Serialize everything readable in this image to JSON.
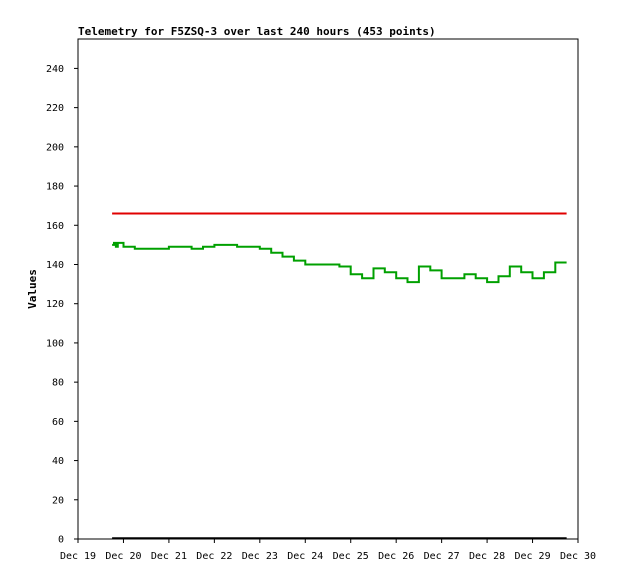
{
  "chart_data": {
    "type": "line",
    "title": "Telemetry for F5ZSQ-3 over last 240 hours (453 points)",
    "xlabel": "",
    "ylabel": "Values",
    "x_tick_labels": [
      "Dec 19",
      "Dec 20",
      "Dec 21",
      "Dec 22",
      "Dec 23",
      "Dec 24",
      "Dec 25",
      "Dec 26",
      "Dec 27",
      "Dec 28",
      "Dec 29",
      "Dec 30"
    ],
    "y_ticks": [
      0,
      20,
      40,
      60,
      80,
      100,
      120,
      140,
      160,
      180,
      200,
      220,
      240
    ],
    "ylim": [
      0,
      255
    ],
    "xlim": [
      "Dec 19",
      "Dec 30"
    ],
    "grid": false,
    "series": [
      {
        "color": "#e00000",
        "points": [
          [
            "Dec 19 18:00",
            166
          ],
          [
            "Dec 29 18:00",
            166
          ]
        ]
      },
      {
        "color": "#00a000",
        "points": [
          [
            "Dec 19 18:00",
            150
          ],
          [
            "Dec 19 19:00",
            151
          ],
          [
            "Dec 19 20:00",
            149
          ],
          [
            "Dec 19 21:00",
            151
          ],
          [
            "Dec 20 00:00",
            149
          ],
          [
            "Dec 20 06:00",
            148
          ],
          [
            "Dec 20 18:00",
            148
          ],
          [
            "Dec 21 00:00",
            149
          ],
          [
            "Dec 21 12:00",
            148
          ],
          [
            "Dec 21 18:00",
            149
          ],
          [
            "Dec 22 00:00",
            150
          ],
          [
            "Dec 22 06:00",
            150
          ],
          [
            "Dec 22 12:00",
            149
          ],
          [
            "Dec 22 18:00",
            149
          ],
          [
            "Dec 23 00:00",
            148
          ],
          [
            "Dec 23 06:00",
            146
          ],
          [
            "Dec 23 12:00",
            144
          ],
          [
            "Dec 23 18:00",
            142
          ],
          [
            "Dec 24 00:00",
            140
          ],
          [
            "Dec 24 12:00",
            140
          ],
          [
            "Dec 24 18:00",
            139
          ],
          [
            "Dec 25 00:00",
            135
          ],
          [
            "Dec 25 06:00",
            133
          ],
          [
            "Dec 25 12:00",
            138
          ],
          [
            "Dec 25 18:00",
            136
          ],
          [
            "Dec 26 00:00",
            133
          ],
          [
            "Dec 26 06:00",
            131
          ],
          [
            "Dec 26 12:00",
            139
          ],
          [
            "Dec 26 18:00",
            137
          ],
          [
            "Dec 27 00:00",
            133
          ],
          [
            "Dec 27 06:00",
            133
          ],
          [
            "Dec 27 12:00",
            135
          ],
          [
            "Dec 27 18:00",
            133
          ],
          [
            "Dec 28 00:00",
            131
          ],
          [
            "Dec 28 06:00",
            134
          ],
          [
            "Dec 28 12:00",
            139
          ],
          [
            "Dec 28 18:00",
            136
          ],
          [
            "Dec 29 00:00",
            133
          ],
          [
            "Dec 29 06:00",
            136
          ],
          [
            "Dec 29 12:00",
            141
          ],
          [
            "Dec 29 18:00",
            141
          ]
        ]
      }
    ]
  }
}
